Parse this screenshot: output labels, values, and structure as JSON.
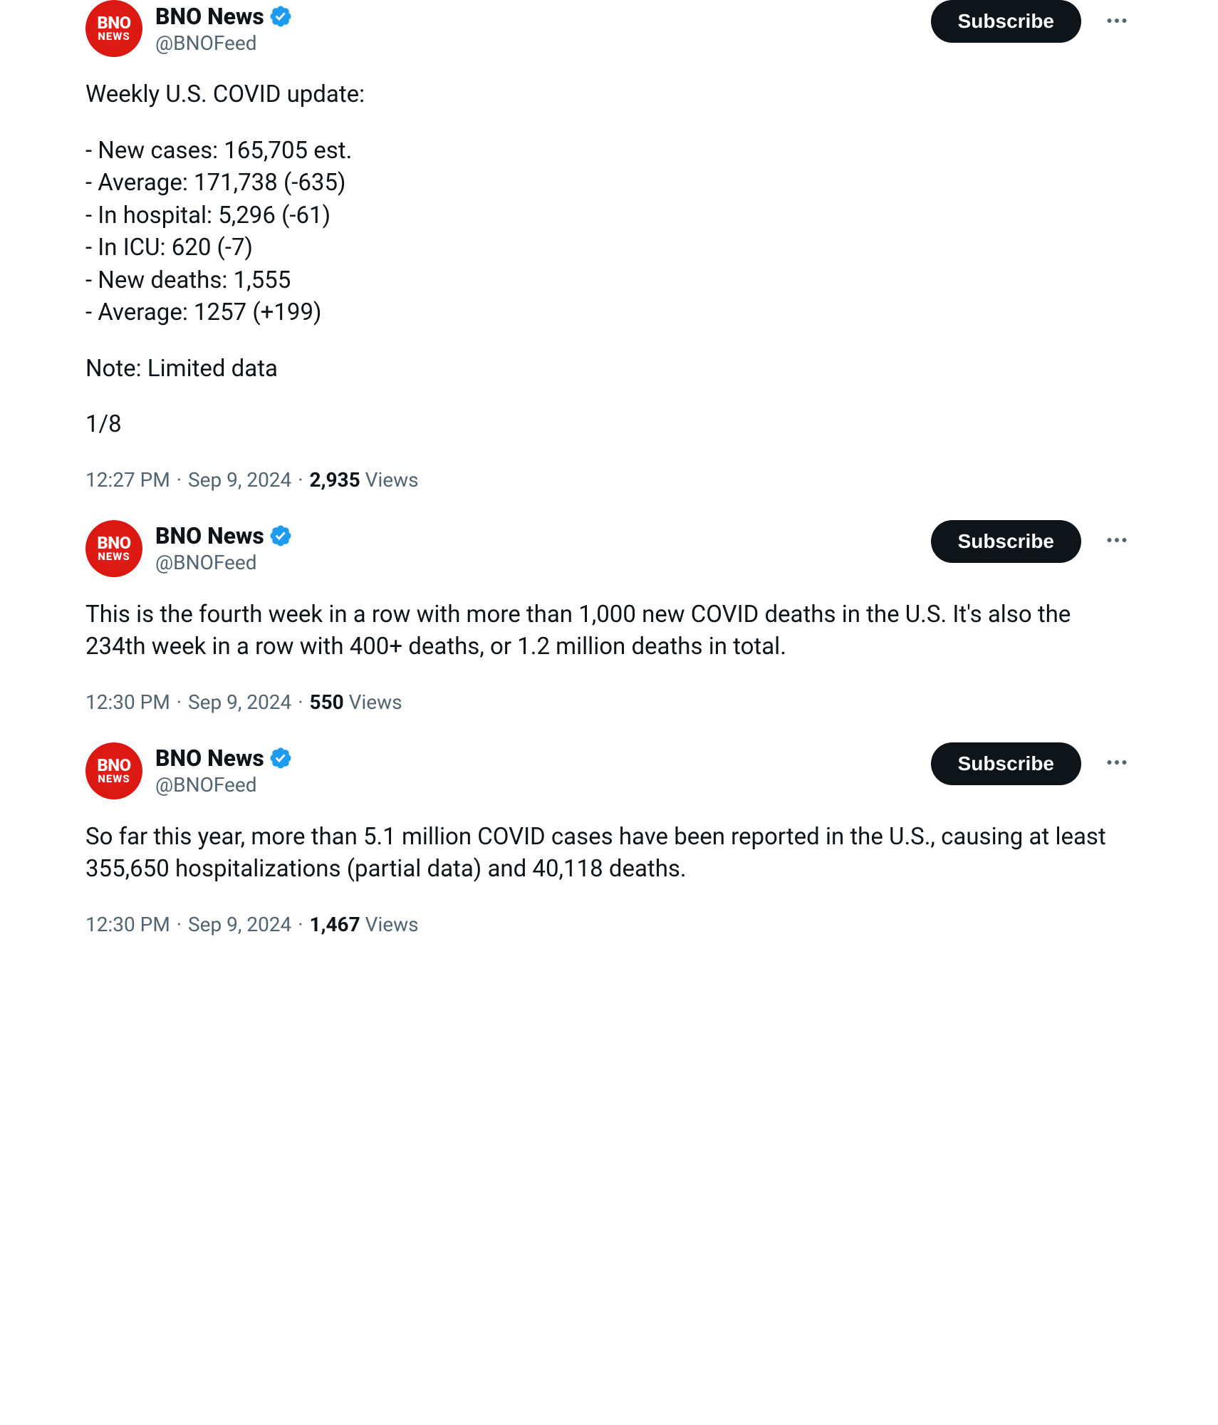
{
  "account": {
    "display_name": "BNO News",
    "handle": "@BNOFeed",
    "avatar_line1": "BNO",
    "avatar_line2": "NEWS",
    "avatar_bg": "#d8140d",
    "verified_color": "#1d9bf0"
  },
  "ui": {
    "subscribe_label": "Subscribe",
    "views_label": "Views"
  },
  "tweets": [
    {
      "lines": [
        "Weekly U.S. COVID update:",
        "",
        "- New cases: 165,705 est.",
        "- Average: 171,738 (-635)",
        "- In hospital: 5,296 (-61)",
        "- In ICU: 620 (-7)",
        "- New deaths: 1,555",
        "- Average: 1257 (+199)",
        "",
        "Note: Limited data",
        "",
        "1/8"
      ],
      "time": "12:27 PM",
      "date": "Sep 9, 2024",
      "views": "2,935"
    },
    {
      "lines": [
        "This is the fourth week in a row with more than 1,000 new COVID deaths in the U.S. It's also the 234th week in a row with 400+ deaths, or 1.2 million deaths in total."
      ],
      "time": "12:30 PM",
      "date": "Sep 9, 2024",
      "views": "550"
    },
    {
      "lines": [
        "So far this year, more than 5.1 million COVID cases have been reported in the U.S., causing at least 355,650 hospitalizations (partial data) and 40,118 deaths."
      ],
      "time": "12:30 PM",
      "date": "Sep 9, 2024",
      "views": "1,467"
    }
  ]
}
